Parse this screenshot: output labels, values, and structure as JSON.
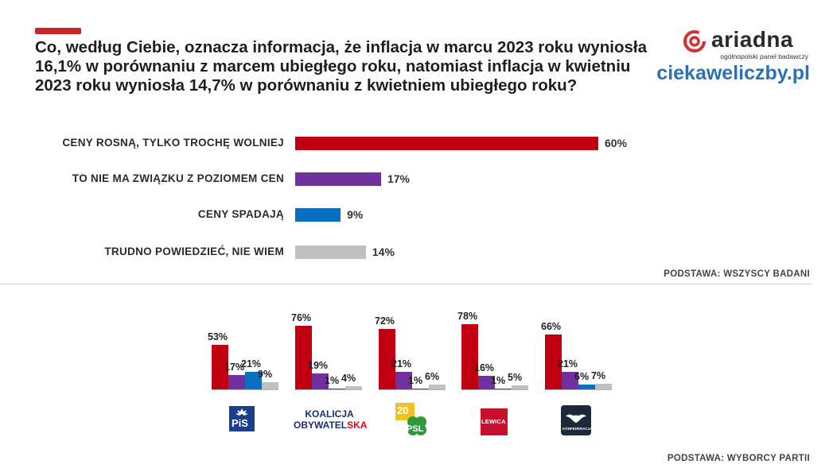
{
  "title": "Co, według Ciebie, oznacza informacja, że inflacja w marcu 2023 roku wyniosła 16,1% w porównaniu z marcem ubiegłego roku, natomiast inflacja w kwietniu 2023 roku wyniosła 14,7% w porównaniu z kwietniem ubiegłego roku?",
  "brand": {
    "name": "ariadna",
    "tagline": "ogólnopolski panel badawczy",
    "site": "ciekaweliczby.pl"
  },
  "basis_all": "PODSTAWA: WSZYSCY BADANI",
  "basis_voters": "PODSTAWA: WYBORCY PARTII",
  "colors": {
    "red": "#c00010",
    "purple": "#7030a0",
    "blue": "#0b6fbf",
    "grey": "#bfbfbf"
  },
  "chart_data": [
    {
      "type": "bar",
      "orientation": "horizontal",
      "categories": [
        "CENY ROSNĄ, TYLKO TROCHĘ WOLNIEJ",
        "TO NIE MA ZWIĄZKU Z POZIOMEM CEN",
        "CENY SPADAJĄ",
        "TRUDNO POWIEDZIEĆ, NIE WIEM"
      ],
      "values": [
        60,
        17,
        9,
        14
      ],
      "labels": [
        "60%",
        "17%",
        "9%",
        "14%"
      ],
      "unit": "%",
      "xlim": [
        0,
        60
      ]
    },
    {
      "type": "bar",
      "orientation": "vertical",
      "categories": [
        "PiS",
        "Koalicja Obywatelska",
        "PSL",
        "Lewica",
        "Konfederacja"
      ],
      "series": [
        {
          "name": "CENY ROSNĄ, TYLKO TROCHĘ WOLNIEJ",
          "values": [
            53,
            76,
            72,
            78,
            66
          ],
          "labels": [
            "53%",
            "76%",
            "72%",
            "78%",
            "66%"
          ]
        },
        {
          "name": "TO NIE MA ZWIĄZKU Z POZIOMEM CEN",
          "values": [
            17,
            19,
            21,
            16,
            21
          ],
          "labels": [
            "17%",
            "19%",
            "21%",
            "16%",
            "21%"
          ]
        },
        {
          "name": "CENY SPADAJĄ",
          "values": [
            21,
            1,
            1,
            1,
            6
          ],
          "labels": [
            "21%",
            "1%",
            "1%",
            "1%",
            "6%"
          ]
        },
        {
          "name": "TRUDNO POWIEDZIEĆ, NIE WIEM",
          "values": [
            9,
            4,
            6,
            5,
            7
          ],
          "labels": [
            "9%",
            "4%",
            "6%",
            "5%",
            "7%"
          ]
        }
      ],
      "ylim": [
        0,
        78
      ]
    }
  ],
  "party_logos": [
    {
      "name": "pis-logo",
      "text": "PiS"
    },
    {
      "name": "ko-logo",
      "line1": "KOALICJA",
      "line2": "OBYWATEL",
      "line2b": "SKA"
    },
    {
      "name": "psl-logo",
      "top": "20",
      "text": "PSL"
    },
    {
      "name": "lewica-logo",
      "text": "LEWICA"
    },
    {
      "name": "konfederacja-logo",
      "text": "KONFEDERACJA"
    }
  ]
}
